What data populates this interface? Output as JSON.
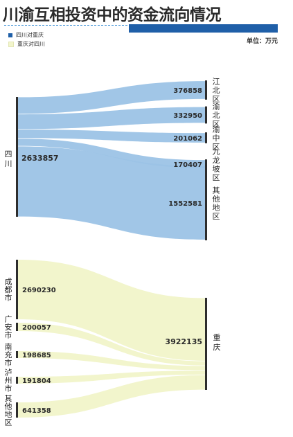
{
  "title": "川渝互相投资中的资金流向情况",
  "unit": "单位：万元",
  "legend": [
    {
      "label": "四川对重庆",
      "color": "#1f5fa8"
    },
    {
      "label": "重庆对四川",
      "color": "#f2f5cc"
    }
  ],
  "chart_data": [
    {
      "type": "sankey",
      "series_name": "四川对重庆",
      "source": {
        "name": "四川",
        "value": 2633857
      },
      "targets": [
        {
          "name": "江北区",
          "value": 376858
        },
        {
          "name": "渝北区",
          "value": 332950
        },
        {
          "name": "渝中区",
          "value": 201062
        },
        {
          "name": "九龙坡区",
          "value": 170407
        },
        {
          "name": "其他地区",
          "value": 1552581
        }
      ],
      "link_color": "#9cc3e6"
    },
    {
      "type": "sankey",
      "series_name": "重庆对四川",
      "sources": [
        {
          "name": "成都市",
          "value": 2690230
        },
        {
          "name": "广安市",
          "value": 200057
        },
        {
          "name": "南充市",
          "value": 198685
        },
        {
          "name": "泸州市",
          "value": 191804
        },
        {
          "name": "其他地区",
          "value": 641358
        }
      ],
      "target": {
        "name": "重庆",
        "value": 3922135
      },
      "link_color": "#f2f5cc"
    }
  ]
}
